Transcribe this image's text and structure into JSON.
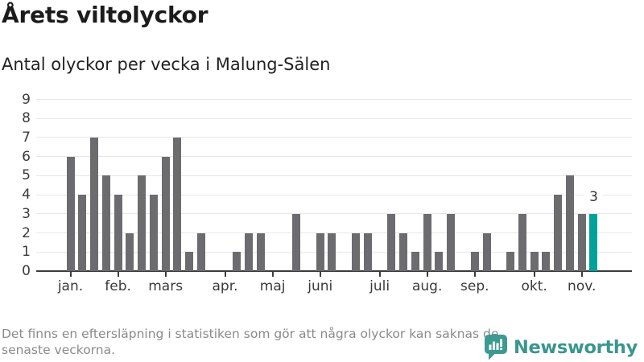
{
  "header": {
    "title": "Årets viltolyckor",
    "subtitle": "Antal olyckor per vecka i Malung-Sälen"
  },
  "chart_data": {
    "type": "bar",
    "title": "Årets viltolyckor",
    "subtitle": "Antal olyckor per vecka i Malung-Sälen",
    "x_unit": "week of year (jan–nov), weeks with no bar = 0 accidents",
    "values": [
      6,
      4,
      7,
      5,
      4,
      2,
      5,
      4,
      6,
      7,
      1,
      2,
      0,
      0,
      1,
      2,
      2,
      0,
      0,
      3,
      0,
      2,
      2,
      0,
      2,
      2,
      0,
      3,
      2,
      1,
      3,
      1,
      3,
      0,
      1,
      2,
      0,
      1,
      3,
      1,
      1,
      4,
      5,
      3,
      3
    ],
    "highlight_last_bar": true,
    "last_bar_value_label": "3",
    "ylim": [
      0,
      9
    ],
    "yticks": [
      0,
      1,
      2,
      3,
      4,
      5,
      6,
      7,
      8,
      9
    ],
    "month_ticks": [
      {
        "label": "jan.",
        "week": 1
      },
      {
        "label": "feb.",
        "week": 5
      },
      {
        "label": "mars",
        "week": 9
      },
      {
        "label": "apr.",
        "week": 14
      },
      {
        "label": "maj",
        "week": 18
      },
      {
        "label": "juni",
        "week": 22
      },
      {
        "label": "juli",
        "week": 27
      },
      {
        "label": "aug.",
        "week": 31
      },
      {
        "label": "sep.",
        "week": 35
      },
      {
        "label": "okt.",
        "week": 40
      },
      {
        "label": "nov.",
        "week": 44
      }
    ],
    "grid": true,
    "legend": "none",
    "colors": {
      "bar": "#6b6b70",
      "highlight": "#00a19b",
      "grid": "#e7e7e7",
      "axis": "#3c3c3c",
      "labels": "#3b3b3b"
    }
  },
  "footnote": {
    "line1": "Det finns en eftersläpning i statistiken som gör att några olyckor kan saknas de",
    "line2": "senaste veckorna."
  },
  "branding": {
    "name": "Newsworthy",
    "logo_icon": "newsworthy-speech-bubble-bar-chart-icon",
    "color": "#3a968e"
  }
}
